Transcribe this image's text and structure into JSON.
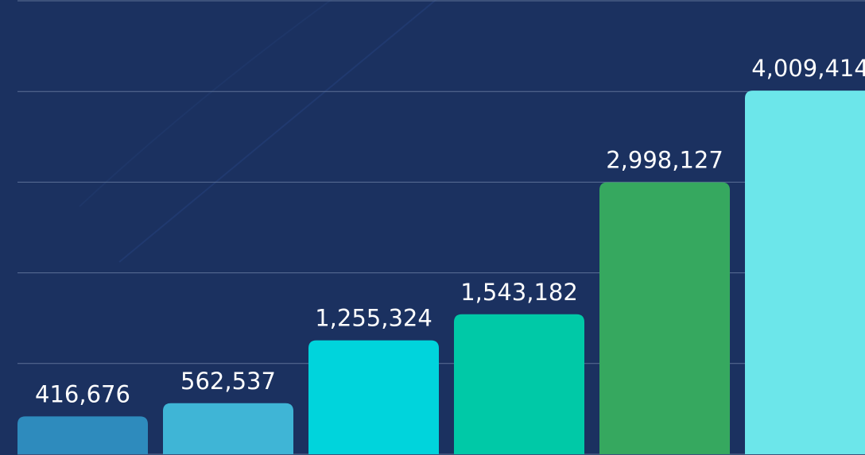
{
  "chart_data": {
    "type": "bar",
    "values": [
      416676,
      562537,
      1255324,
      1543182,
      2998127,
      4009414
    ],
    "value_labels": [
      "416,676",
      "562,537",
      "1,255,324",
      "1,543,182",
      "2,998,127",
      "4,009,414"
    ],
    "colors": [
      "#2e8bbd",
      "#3fb5d6",
      "#00d4dc",
      "#00c9a7",
      "#36a85f",
      "#6ce6ea"
    ],
    "ylim": [
      0,
      5000000
    ],
    "yticks": [
      0,
      1000000,
      2000000,
      3000000,
      4000000,
      5000000
    ],
    "grid": true
  }
}
